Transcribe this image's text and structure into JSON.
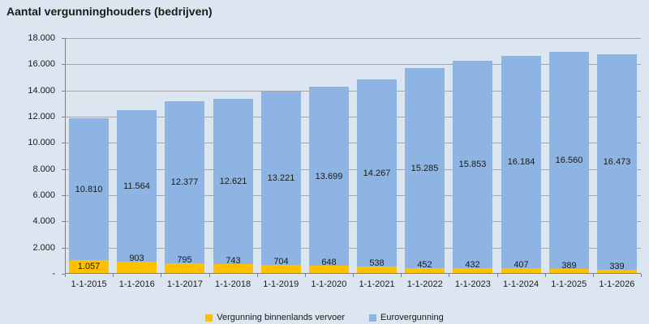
{
  "title": "Aantal vergunninghouders (bedrijven)",
  "colors": {
    "background": "#dce6f1",
    "bar_blue": "#8db4e2",
    "bar_yellow": "#ffc000",
    "gridline": "#a6a6a6",
    "axis": "#808080",
    "label_text": "#1a1a1a"
  },
  "y_axis": {
    "tick_labels": [
      "18.000",
      "16.000",
      "14.000",
      "12.000",
      "10.000",
      "8.000",
      "6.000",
      "4.000",
      "2.000",
      "-"
    ],
    "min": 0,
    "max": 18000,
    "step": 2000
  },
  "legend": [
    {
      "label": "Vergunning binnenlands vervoer",
      "color": "#ffc000"
    },
    {
      "label": "Eurovergunning",
      "color": "#8db4e2"
    }
  ],
  "chart_data": {
    "type": "bar",
    "stacked": true,
    "title": "Aantal vergunninghouders (bedrijven)",
    "categories": [
      "1-1-2015",
      "1-1-2016",
      "1-1-2017",
      "1-1-2018",
      "1-1-2019",
      "1-1-2020",
      "1-1-2021",
      "1-1-2022",
      "1-1-2023",
      "1-1-2024",
      "1-1-2025",
      "1-1-2026"
    ],
    "series": [
      {
        "name": "Vergunning binnenlands vervoer",
        "color": "#ffc000",
        "values": [
          1057,
          903,
          795,
          743,
          704,
          648,
          538,
          452,
          432,
          407,
          389,
          339
        ],
        "labels": [
          "1.057",
          "903",
          "795",
          "743",
          "704",
          "648",
          "538",
          "452",
          "432",
          "407",
          "389",
          "339"
        ]
      },
      {
        "name": "Eurovergunning",
        "color": "#8db4e2",
        "values": [
          10810,
          11564,
          12377,
          12621,
          13221,
          13699,
          14267,
          15285,
          15853,
          16184,
          16560,
          16473
        ],
        "labels": [
          "10.810",
          "11.564",
          "12.377",
          "12.621",
          "13.221",
          "13.699",
          "14.267",
          "15.285",
          "15.853",
          "16.184",
          "16.560",
          "16.473"
        ]
      }
    ],
    "ylim": [
      0,
      18000
    ],
    "grid": true,
    "legend_position": "bottom"
  }
}
